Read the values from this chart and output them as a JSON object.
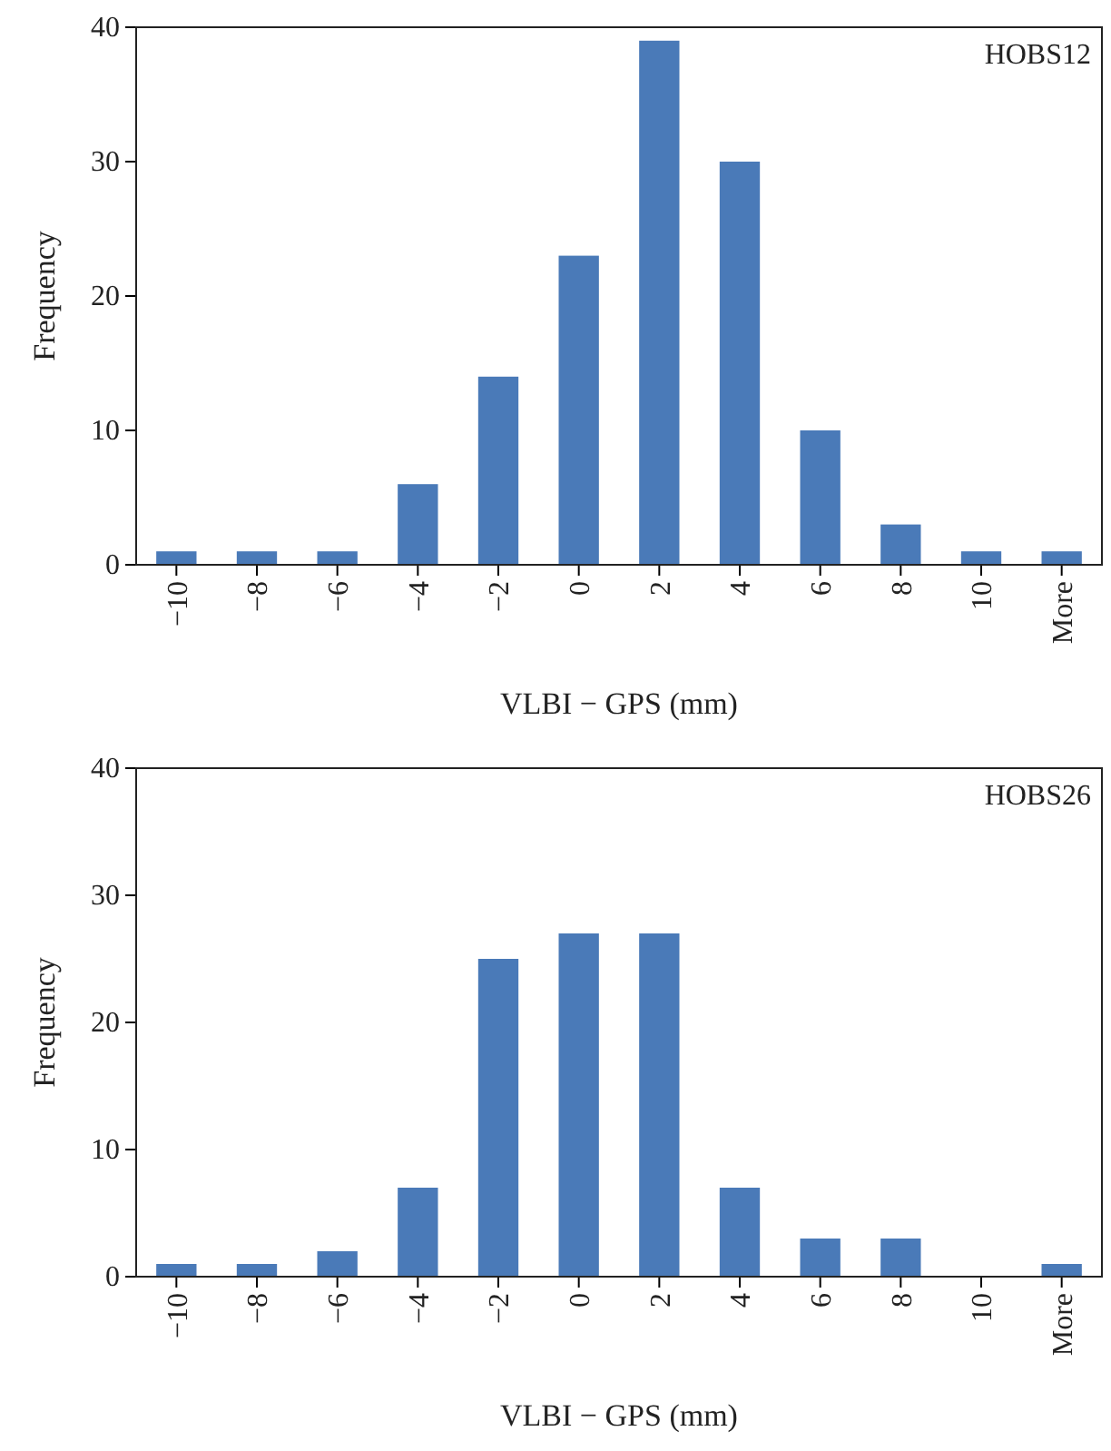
{
  "chart_data": [
    {
      "type": "bar",
      "title": "HOBS12",
      "xlabel": "VLBI − GPS (mm)",
      "ylabel": "Frequency",
      "categories": [
        "−10",
        "−8",
        "−6",
        "−4",
        "−2",
        "0",
        "2",
        "4",
        "6",
        "8",
        "10",
        "More"
      ],
      "values": [
        1,
        1,
        1,
        6,
        14,
        23,
        39,
        30,
        10,
        3,
        1,
        1
      ],
      "color": "#4a7ab8",
      "ylim": [
        0,
        40
      ],
      "yticks": [
        0,
        10,
        20,
        30,
        40
      ]
    },
    {
      "type": "bar",
      "title": "HOBS26",
      "xlabel": "VLBI − GPS (mm)",
      "ylabel": "Frequency",
      "categories": [
        "−10",
        "−8",
        "−6",
        "−4",
        "−2",
        "0",
        "2",
        "4",
        "6",
        "8",
        "10",
        "More"
      ],
      "values": [
        1,
        1,
        2,
        7,
        25,
        27,
        27,
        7,
        3,
        3,
        0,
        1
      ],
      "color": "#4a7ab8",
      "ylim": [
        0,
        40
      ],
      "yticks": [
        0,
        10,
        20,
        30,
        40
      ]
    }
  ]
}
